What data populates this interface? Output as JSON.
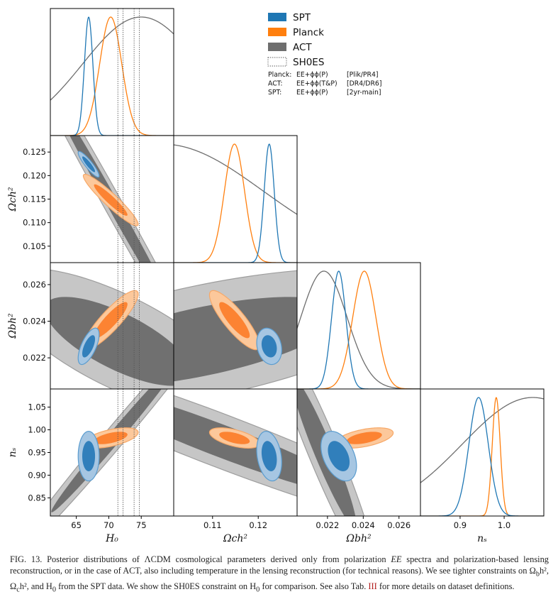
{
  "figure_id": "FIG. 13.",
  "caption": {
    "lead": "FIG. 13.",
    "part1": " Posterior distributions of ΛCDM cosmological parameters derived only from polarization ",
    "ee": "EE",
    "part2": " spectra and polarization-based lensing reconstruction, or in the case of ACT, also including temperature in the lensing reconstruction (for technical reasons). We see tighter constraints on Ω",
    "sub_b": "b",
    "part3": "h², Ω",
    "sub_c": "c",
    "part4": "h², and H",
    "sub_0": "0",
    "part5": " from the SPT data. We show the SH0ES constraint on H",
    "sub_0b": "0",
    "part6": " for comparison. See also Tab. ",
    "table_ref": "III",
    "part7": " for more details on dataset definitions."
  },
  "colors": {
    "SPT": "#1f77b4",
    "Planck": "#ff7f0e",
    "ACT": "#6e6e6e",
    "SH0ES": "#555555"
  },
  "legend": {
    "entries": [
      {
        "key": "SPT",
        "label": "SPT",
        "style": "filled"
      },
      {
        "key": "Planck",
        "label": "Planck",
        "style": "filled"
      },
      {
        "key": "ACT",
        "label": "ACT",
        "style": "filled"
      },
      {
        "key": "SH0ES",
        "label": "SH0ES",
        "style": "dotted-box"
      }
    ],
    "notes": [
      {
        "name": "Planck:",
        "data": "EE+ϕϕ(P)",
        "release": "[Plik/PR4]"
      },
      {
        "name": "ACT:",
        "data": "EE+ϕϕ(T&P)",
        "release": "[DR4/DR6]"
      },
      {
        "name": "SPT:",
        "data": "EE+ϕϕ(P)",
        "release": "[2yr-main]"
      }
    ]
  },
  "chart_data": {
    "type": "triangle-plot",
    "parameters": [
      {
        "key": "H0",
        "label": "H₀",
        "range": [
          61,
          80
        ],
        "ticks": [
          65,
          70,
          75
        ]
      },
      {
        "key": "Och2",
        "label": "Ωch²",
        "range": [
          0.1015,
          0.1285
        ],
        "ticks": [
          0.105,
          0.11,
          0.115,
          0.12,
          0.125
        ]
      },
      {
        "key": "Obh2",
        "label": "Ωbh²",
        "range": [
          0.0203,
          0.0272
        ],
        "ticks": [
          0.022,
          0.024,
          0.026
        ]
      },
      {
        "key": "ns",
        "label": "nₛ",
        "range": [
          0.81,
          1.09
        ],
        "ticks": [
          0.85,
          0.9,
          0.95,
          1.0,
          1.05
        ]
      }
    ],
    "tick_labels": {
      "H0": [
        "65",
        "70",
        "75"
      ],
      "Och2": [
        "0.105",
        "0.110",
        "0.115",
        "0.120",
        "0.125"
      ],
      "Obh2": [
        "0.022",
        "0.024",
        "0.026"
      ],
      "ns": [
        "0.85",
        "0.90",
        "0.95",
        "1.00",
        "1.05"
      ]
    },
    "x_tick_labels": {
      "H0": [
        "65",
        "70",
        "75"
      ],
      "Och2": [
        "0.11",
        "0.12"
      ],
      "Obh2": [
        "0.022",
        "0.024",
        "0.026"
      ],
      "ns": [
        "0.9",
        "1.0"
      ]
    },
    "x_tick_values": {
      "H0": [
        65,
        70,
        75
      ],
      "Och2": [
        0.11,
        0.12
      ],
      "Obh2": [
        0.022,
        0.024,
        0.026
      ],
      "ns": [
        0.9,
        1.0
      ]
    },
    "marginals": [
      {
        "param": "H0",
        "series": [
          {
            "name": "SPT",
            "mean": 66.9,
            "sigma": 0.65
          },
          {
            "name": "Planck",
            "mean": 70.3,
            "sigma": 1.7
          },
          {
            "name": "ACT",
            "mean": 75.0,
            "sigma": 9.0
          }
        ]
      },
      {
        "param": "Och2",
        "series": [
          {
            "name": "SPT",
            "mean": 0.1224,
            "sigma": 0.0011
          },
          {
            "name": "Planck",
            "mean": 0.1148,
            "sigma": 0.0022
          },
          {
            "name": "ACT",
            "mean": 0.099,
            "sigma": 0.022
          }
        ]
      },
      {
        "param": "Obh2",
        "series": [
          {
            "name": "SPT",
            "mean": 0.02263,
            "sigma": 0.0004
          },
          {
            "name": "Planck",
            "mean": 0.02406,
            "sigma": 0.00065
          },
          {
            "name": "ACT",
            "mean": 0.0218,
            "sigma": 0.0013
          }
        ]
      },
      {
        "param": "ns",
        "series": [
          {
            "name": "SPT",
            "mean": 0.942,
            "sigma": 0.022
          },
          {
            "name": "Planck",
            "mean": 0.982,
            "sigma": 0.009
          },
          {
            "name": "ACT",
            "mean": 1.065,
            "sigma": 0.16
          }
        ]
      }
    ],
    "contours_2d": [
      {
        "x": "H0",
        "y": "Och2",
        "series": [
          {
            "name": "ACT",
            "center": [
              71.0,
              0.113
            ],
            "sx": 6.5,
            "sy": 0.016,
            "rho": -0.995
          },
          {
            "name": "Planck",
            "center": [
              70.3,
              0.1148
            ],
            "sx": 1.7,
            "sy": 0.0022,
            "rho": -0.94
          },
          {
            "name": "SPT",
            "center": [
              66.9,
              0.1224
            ],
            "sx": 0.65,
            "sy": 0.0011,
            "rho": -0.9
          }
        ]
      },
      {
        "x": "H0",
        "y": "Obh2",
        "series": [
          {
            "name": "ACT",
            "center": [
              71.5,
              0.0229
            ],
            "sx": 7.5,
            "sy": 0.0016,
            "rho": -0.72
          },
          {
            "name": "Planck",
            "center": [
              70.3,
              0.02406
            ],
            "sx": 1.7,
            "sy": 0.00065,
            "rho": 0.88
          },
          {
            "name": "SPT",
            "center": [
              66.9,
              0.02263
            ],
            "sx": 0.65,
            "sy": 0.0004,
            "rho": 0.65
          }
        ]
      },
      {
        "x": "Och2",
        "y": "Obh2",
        "series": [
          {
            "name": "ACT",
            "center": [
              0.108,
              0.0229
            ],
            "sx": 0.02,
            "sy": 0.0016,
            "rho": 0.62
          },
          {
            "name": "Planck",
            "center": [
              0.1148,
              0.02406
            ],
            "sx": 0.0022,
            "sy": 0.00065,
            "rho": -0.85
          },
          {
            "name": "SPT",
            "center": [
              0.1224,
              0.02263
            ],
            "sx": 0.0011,
            "sy": 0.0004,
            "rho": -0.2
          }
        ]
      },
      {
        "x": "H0",
        "y": "ns",
        "series": [
          {
            "name": "ACT",
            "center": [
              71.0,
              0.985
            ],
            "sx": 6.5,
            "sy": 0.11,
            "rho": 0.992
          },
          {
            "name": "Planck",
            "center": [
              70.3,
              0.982
            ],
            "sx": 1.7,
            "sy": 0.009,
            "rho": 0.55
          },
          {
            "name": "SPT",
            "center": [
              66.9,
              0.942
            ],
            "sx": 0.65,
            "sy": 0.022,
            "rho": 0.0
          }
        ]
      },
      {
        "x": "Och2",
        "y": "ns",
        "series": [
          {
            "name": "ACT",
            "center": [
              0.112,
              0.975
            ],
            "sx": 0.02,
            "sy": 0.08,
            "rho": -0.95
          },
          {
            "name": "Planck",
            "center": [
              0.1148,
              0.982
            ],
            "sx": 0.0022,
            "sy": 0.009,
            "rho": -0.55
          },
          {
            "name": "SPT",
            "center": [
              0.1224,
              0.942
            ],
            "sx": 0.0011,
            "sy": 0.022,
            "rho": -0.25
          }
        ]
      },
      {
        "x": "Obh2",
        "y": "ns",
        "series": [
          {
            "name": "ACT",
            "center": [
              0.0218,
              0.95
            ],
            "sx": 0.0012,
            "sy": 0.11,
            "rho": -0.95
          },
          {
            "name": "Planck",
            "center": [
              0.02406,
              0.982
            ],
            "sx": 0.00065,
            "sy": 0.009,
            "rho": 0.5
          },
          {
            "name": "SPT",
            "center": [
              0.02263,
              0.942
            ],
            "sx": 0.0004,
            "sy": 0.022,
            "rho": -0.4
          }
        ]
      }
    ],
    "sh0es": {
      "param": "H0",
      "lines": [
        71.4,
        72.2,
        73.9,
        74.7
      ]
    }
  }
}
